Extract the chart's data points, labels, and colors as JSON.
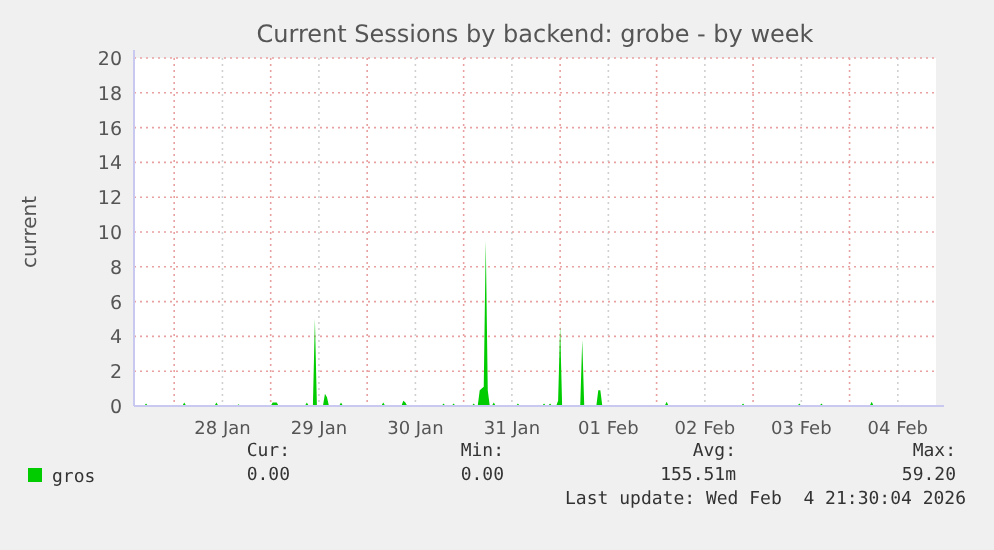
{
  "chart_data": {
    "type": "area",
    "title": "Current Sessions by backend: grobe - by week",
    "ylabel": "current",
    "x": [
      "2026-01-27T14:00",
      "2026-01-27T16:30",
      "2026-01-27T17:00",
      "2026-01-27T17:30",
      "2026-01-28T02:00",
      "2026-01-28T02:30",
      "2026-01-28T03:00",
      "2026-01-28T10:00",
      "2026-01-28T10:30",
      "2026-01-28T11:00",
      "2026-01-28T15:30",
      "2026-01-28T16:00",
      "2026-01-28T16:30",
      "2026-01-29T00:00",
      "2026-01-29T00:30",
      "2026-01-29T01:30",
      "2026-01-29T02:00",
      "2026-01-29T08:30",
      "2026-01-29T09:00",
      "2026-01-29T09:30",
      "2026-01-29T10:30",
      "2026-01-29T11:00",
      "2026-01-29T11:30",
      "2026-01-29T13:00",
      "2026-01-29T13:30",
      "2026-01-29T14:00",
      "2026-01-29T14:30",
      "2026-01-29T17:00",
      "2026-01-29T17:30",
      "2026-01-29T18:00",
      "2026-01-30T03:30",
      "2026-01-30T04:00",
      "2026-01-30T04:30",
      "2026-01-30T08:30",
      "2026-01-30T09:00",
      "2026-01-30T09:30",
      "2026-01-30T10:00",
      "2026-01-30T18:30",
      "2026-01-30T19:00",
      "2026-01-30T19:30",
      "2026-01-30T21:00",
      "2026-01-30T21:30",
      "2026-01-30T22:00",
      "2026-01-31T02:00",
      "2026-01-31T02:30",
      "2026-01-31T03:00",
      "2026-01-31T03:30",
      "2026-01-31T04:00",
      "2026-01-31T04:30",
      "2026-01-31T05:00",
      "2026-01-31T05:30",
      "2026-01-31T06:00",
      "2026-01-31T06:30",
      "2026-01-31T07:00",
      "2026-01-31T07:30",
      "2026-01-31T08:00",
      "2026-01-31T13:00",
      "2026-01-31T13:30",
      "2026-01-31T14:00",
      "2026-01-31T19:30",
      "2026-01-31T20:00",
      "2026-01-31T20:30",
      "2026-01-31T21:00",
      "2026-01-31T21:30",
      "2026-01-31T22:00",
      "2026-01-31T23:00",
      "2026-01-31T23:30",
      "2026-02-01T00:00",
      "2026-02-01T00:30",
      "2026-02-01T05:00",
      "2026-02-01T05:30",
      "2026-02-01T06:00",
      "2026-02-01T09:00",
      "2026-02-01T09:30",
      "2026-02-01T10:00",
      "2026-02-01T10:30",
      "2026-02-02T02:00",
      "2026-02-02T02:30",
      "2026-02-02T03:00",
      "2026-02-02T21:00",
      "2026-02-02T21:30",
      "2026-02-02T22:00",
      "2026-02-03T11:00",
      "2026-02-03T11:30",
      "2026-02-03T12:00",
      "2026-02-03T16:30",
      "2026-02-03T17:00",
      "2026-02-03T17:30",
      "2026-02-04T05:00",
      "2026-02-04T05:30",
      "2026-02-04T06:00",
      "2026-02-04T21:30"
    ],
    "series": [
      {
        "name": "gros",
        "color": "#00cc00",
        "values": [
          0,
          0,
          0.15,
          0,
          0,
          0.2,
          0,
          0,
          0.2,
          0,
          0,
          0.1,
          0,
          0,
          0.2,
          0.2,
          0,
          0,
          0.2,
          0,
          0,
          5.0,
          0,
          0,
          0.7,
          0.5,
          0,
          0,
          0.2,
          0,
          0,
          0.2,
          0,
          0,
          0.3,
          0.2,
          0,
          0,
          0.15,
          0,
          0,
          0.15,
          0,
          0,
          0.15,
          0,
          0,
          0.9,
          1.0,
          1.1,
          9.5,
          0.9,
          0,
          0,
          0.2,
          0,
          0,
          0.15,
          0,
          0,
          0.15,
          0,
          0,
          0.15,
          0,
          0,
          0.3,
          4.6,
          0,
          0,
          3.8,
          0,
          0,
          0.9,
          0.9,
          0,
          0,
          0.25,
          0,
          0,
          0.15,
          0,
          0,
          0.15,
          0,
          0,
          0.15,
          0,
          0,
          0.25,
          0,
          0
        ]
      }
    ],
    "xlim": [
      "2026-01-27T14:00",
      "2026-02-04T21:30"
    ],
    "xticks": [
      {
        "value": "2026-01-28T00:00",
        "label": null
      },
      {
        "value": "2026-01-28T12:00",
        "label": "28 Jan"
      },
      {
        "value": "2026-01-29T00:00",
        "label": null
      },
      {
        "value": "2026-01-29T12:00",
        "label": "29 Jan"
      },
      {
        "value": "2026-01-30T00:00",
        "label": null
      },
      {
        "value": "2026-01-30T12:00",
        "label": "30 Jan"
      },
      {
        "value": "2026-01-31T00:00",
        "label": null
      },
      {
        "value": "2026-01-31T12:00",
        "label": "31 Jan"
      },
      {
        "value": "2026-02-01T00:00",
        "label": null
      },
      {
        "value": "2026-02-01T12:00",
        "label": "01 Feb"
      },
      {
        "value": "2026-02-02T00:00",
        "label": null
      },
      {
        "value": "2026-02-02T12:00",
        "label": "02 Feb"
      },
      {
        "value": "2026-02-03T00:00",
        "label": null
      },
      {
        "value": "2026-02-03T12:00",
        "label": "03 Feb"
      },
      {
        "value": "2026-02-04T00:00",
        "label": null
      },
      {
        "value": "2026-02-04T12:00",
        "label": "04 Feb"
      }
    ],
    "ylim": [
      0,
      20
    ],
    "yticks": [
      0,
      2,
      4,
      6,
      8,
      10,
      12,
      14,
      16,
      18,
      20
    ],
    "grid": true,
    "legend": "bottom left",
    "annotations": [
      "Cur:",
      "Min:",
      "Avg:",
      "Max:",
      "0.00",
      "0.00",
      "155.51m",
      "59.20",
      "Last update: Wed Feb  4 21:30:04 2026"
    ]
  }
}
